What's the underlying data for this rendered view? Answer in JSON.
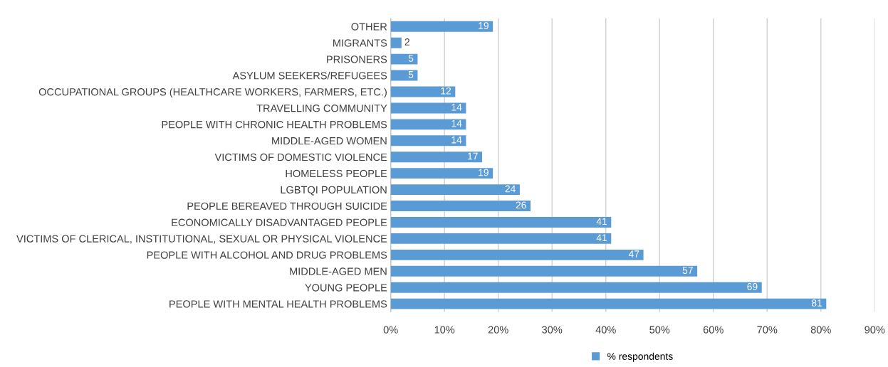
{
  "chart_data": {
    "type": "bar",
    "orientation": "horizontal",
    "categories": [
      "OTHER",
      "MIGRANTS",
      "PRISONERS",
      "ASYLUM SEEKERS/REFUGEES",
      "OCCUPATIONAL GROUPS (HEALTHCARE WORKERS, FARMERS, ETC.)",
      "TRAVELLING COMMUNITY",
      "PEOPLE WITH CHRONIC HEALTH PROBLEMS",
      "MIDDLE-AGED WOMEN",
      "VICTIMS OF DOMESTIC VIOLENCE",
      "HOMELESS PEOPLE",
      "LGBTQI POPULATION",
      "PEOPLE BEREAVED THROUGH SUICIDE",
      "ECONOMICALLY DISADVANTAGED PEOPLE",
      "VICTIMS OF CLERICAL, INSTITUTIONAL, SEXUAL OR PHYSICAL VIOLENCE",
      "PEOPLE WITH ALCOHOL AND DRUG PROBLEMS",
      "MIDDLE-AGED MEN",
      "YOUNG PEOPLE",
      "PEOPLE WITH MENTAL HEALTH PROBLEMS"
    ],
    "series": [
      {
        "name": "% respondents",
        "color": "#5b9bd5",
        "values": [
          19,
          2,
          5,
          5,
          12,
          14,
          14,
          14,
          17,
          19,
          24,
          26,
          41,
          41,
          47,
          57,
          69,
          81
        ]
      }
    ],
    "data_labels": true,
    "xlim": [
      0,
      90
    ],
    "xticks": [
      {
        "value": 0,
        "label": "0%"
      },
      {
        "value": 10,
        "label": "10%"
      },
      {
        "value": 20,
        "label": "20%"
      },
      {
        "value": 30,
        "label": "30%"
      },
      {
        "value": 40,
        "label": "40%"
      },
      {
        "value": 50,
        "label": "50%"
      },
      {
        "value": 60,
        "label": "60%"
      },
      {
        "value": 70,
        "label": "70%"
      },
      {
        "value": 80,
        "label": "80%"
      },
      {
        "value": 90,
        "label": "90%"
      }
    ],
    "grid": "x",
    "legend": "bottom"
  }
}
